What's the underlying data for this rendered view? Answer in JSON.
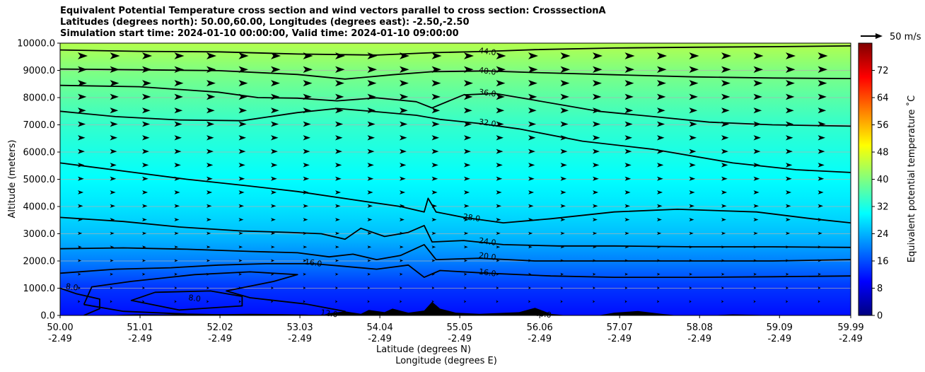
{
  "chart_data": {
    "type": "heatmap",
    "title_lines": [
      "Equivalent Potential Temperature cross section and wind vectors parallel to cross section: CrosssectionA",
      "Latitudes (degrees north): 50.00,60.00, Longitudes (degrees east): -2.50,-2.50",
      "Simulation start time: 2024-01-10 00:00:00, Valid time: 2024-01-10 09:00:00"
    ],
    "ylabel": "Altitude (meters)",
    "xlabel_lat": "Latitude (degrees N)",
    "xlabel_lon": "Longitude (degrees E)",
    "xlim": [
      50.0,
      59.99
    ],
    "ylim": [
      0,
      10000
    ],
    "x_ticks": [
      {
        "lat": "50.00",
        "lon": "-2.49"
      },
      {
        "lat": "51.01",
        "lon": "-2.49"
      },
      {
        "lat": "52.02",
        "lon": "-2.49"
      },
      {
        "lat": "53.03",
        "lon": "-2.49"
      },
      {
        "lat": "54.04",
        "lon": "-2.49"
      },
      {
        "lat": "55.05",
        "lon": "-2.49"
      },
      {
        "lat": "56.06",
        "lon": "-2.49"
      },
      {
        "lat": "57.07",
        "lon": "-2.49"
      },
      {
        "lat": "58.08",
        "lon": "-2.49"
      },
      {
        "lat": "59.09",
        "lon": "-2.49"
      },
      {
        "lat": "59.99",
        "lon": "-2.49"
      }
    ],
    "y_ticks": [
      "0.0",
      "1000.0",
      "2000.0",
      "3000.0",
      "4000.0",
      "5000.0",
      "6000.0",
      "7000.0",
      "8000.0",
      "9000.0",
      "10000.0"
    ],
    "grid": true,
    "colorbar": {
      "label": "Equivalent potential temperature ˚C",
      "range": [
        0,
        80
      ],
      "ticks": [
        "0",
        "8",
        "16",
        "24",
        "32",
        "40",
        "48",
        "56",
        "64",
        "72"
      ],
      "colormap": "jet"
    },
    "quiver_key": "50 m/s",
    "contour_labels": [
      {
        "text": "44.0",
        "lat": 55.4,
        "alt": 9700
      },
      {
        "text": "40.0",
        "lat": 55.4,
        "alt": 8980
      },
      {
        "text": "36.0",
        "lat": 55.4,
        "alt": 8180
      },
      {
        "text": "32.0",
        "lat": 55.4,
        "alt": 7080
      },
      {
        "text": "28.0",
        "lat": 55.2,
        "alt": 3600
      },
      {
        "text": "24.0",
        "lat": 55.4,
        "alt": 2720
      },
      {
        "text": "20.0",
        "lat": 55.4,
        "alt": 2180
      },
      {
        "text": "16.0",
        "lat": 55.4,
        "alt": 1580
      },
      {
        "text": "16.0",
        "lat": 53.2,
        "alt": 1940
      },
      {
        "text": "12.0",
        "lat": 53.4,
        "alt": 80
      },
      {
        "text": "16.0",
        "lat": 56.1,
        "alt": 60
      },
      {
        "text": "8.0",
        "lat": 51.7,
        "alt": 640
      },
      {
        "text": "8.0",
        "lat": 50.15,
        "alt": 1050
      }
    ],
    "contours": [
      {
        "level": 44,
        "points": [
          [
            50.0,
            9750
          ],
          [
            51.0,
            9700
          ],
          [
            52.0,
            9680
          ],
          [
            53.0,
            9600
          ],
          [
            54.0,
            9560
          ],
          [
            54.7,
            9650
          ],
          [
            55.4,
            9700
          ],
          [
            56.0,
            9760
          ],
          [
            57.0,
            9820
          ],
          [
            58.0,
            9850
          ],
          [
            59.0,
            9870
          ],
          [
            59.99,
            9900
          ]
        ]
      },
      {
        "level": 40,
        "points": [
          [
            50.0,
            9050
          ],
          [
            51.0,
            9020
          ],
          [
            52.0,
            8990
          ],
          [
            53.0,
            8850
          ],
          [
            53.6,
            8680
          ],
          [
            54.2,
            8840
          ],
          [
            54.7,
            8950
          ],
          [
            55.4,
            8980
          ],
          [
            56.0,
            8920
          ],
          [
            57.0,
            8840
          ],
          [
            58.0,
            8760
          ],
          [
            59.0,
            8720
          ],
          [
            59.99,
            8700
          ]
        ]
      },
      {
        "level": 36,
        "points": [
          [
            50.0,
            8450
          ],
          [
            51.0,
            8400
          ],
          [
            52.0,
            8200
          ],
          [
            52.5,
            8000
          ],
          [
            53.0,
            7980
          ],
          [
            53.5,
            7880
          ],
          [
            54.0,
            7990
          ],
          [
            54.5,
            7850
          ],
          [
            54.7,
            7620
          ],
          [
            55.1,
            8100
          ],
          [
            55.5,
            8150
          ],
          [
            56.0,
            7900
          ],
          [
            56.8,
            7500
          ],
          [
            57.5,
            7300
          ],
          [
            58.2,
            7100
          ],
          [
            59.0,
            7000
          ],
          [
            59.99,
            6950
          ]
        ]
      },
      {
        "level": 32,
        "points": [
          [
            50.0,
            7500
          ],
          [
            50.7,
            7300
          ],
          [
            51.5,
            7180
          ],
          [
            52.3,
            7150
          ],
          [
            53.0,
            7450
          ],
          [
            53.5,
            7600
          ],
          [
            54.0,
            7480
          ],
          [
            54.5,
            7350
          ],
          [
            54.8,
            7200
          ],
          [
            55.3,
            7050
          ],
          [
            55.8,
            6850
          ],
          [
            56.6,
            6400
          ],
          [
            57.5,
            6100
          ],
          [
            58.5,
            5600
          ],
          [
            59.3,
            5350
          ],
          [
            59.99,
            5250
          ]
        ]
      },
      {
        "level": 28,
        "points": [
          [
            50.0,
            5600
          ],
          [
            50.8,
            5300
          ],
          [
            51.6,
            5000
          ],
          [
            52.4,
            4750
          ],
          [
            53.0,
            4550
          ],
          [
            53.7,
            4250
          ],
          [
            54.3,
            4000
          ],
          [
            54.6,
            3800
          ],
          [
            54.65,
            4300
          ],
          [
            54.75,
            3800
          ],
          [
            55.1,
            3600
          ],
          [
            55.6,
            3400
          ],
          [
            56.2,
            3550
          ],
          [
            57.0,
            3800
          ],
          [
            57.8,
            3900
          ],
          [
            58.8,
            3800
          ],
          [
            59.5,
            3550
          ],
          [
            59.99,
            3400
          ]
        ]
      },
      {
        "level": 24,
        "points": [
          [
            50.0,
            3600
          ],
          [
            50.8,
            3450
          ],
          [
            51.5,
            3250
          ],
          [
            52.3,
            3100
          ],
          [
            52.9,
            3050
          ],
          [
            53.3,
            3000
          ],
          [
            53.6,
            2800
          ],
          [
            53.8,
            3200
          ],
          [
            54.1,
            2900
          ],
          [
            54.4,
            3050
          ],
          [
            54.6,
            3300
          ],
          [
            54.7,
            2700
          ],
          [
            55.1,
            2750
          ],
          [
            55.6,
            2600
          ],
          [
            56.3,
            2550
          ],
          [
            57.0,
            2550
          ],
          [
            58.0,
            2520
          ],
          [
            59.0,
            2520
          ],
          [
            59.99,
            2500
          ]
        ]
      },
      {
        "level": 20,
        "points": [
          [
            50.0,
            2450
          ],
          [
            50.8,
            2480
          ],
          [
            51.6,
            2430
          ],
          [
            52.4,
            2350
          ],
          [
            53.0,
            2300
          ],
          [
            53.4,
            2150
          ],
          [
            53.7,
            2250
          ],
          [
            54.0,
            2050
          ],
          [
            54.3,
            2200
          ],
          [
            54.6,
            2600
          ],
          [
            54.75,
            2050
          ],
          [
            55.3,
            2100
          ],
          [
            56.0,
            2000
          ],
          [
            57.0,
            2000
          ],
          [
            58.0,
            2000
          ],
          [
            59.0,
            2000
          ],
          [
            59.99,
            2050
          ]
        ]
      },
      {
        "level": 16,
        "points": [
          [
            50.0,
            1550
          ],
          [
            50.7,
            1700
          ],
          [
            51.4,
            1750
          ],
          [
            52.0,
            1850
          ],
          [
            52.6,
            1900
          ],
          [
            53.2,
            1900
          ],
          [
            53.6,
            1800
          ],
          [
            54.0,
            1700
          ],
          [
            54.4,
            1850
          ],
          [
            54.6,
            1400
          ],
          [
            54.8,
            1650
          ],
          [
            55.4,
            1550
          ],
          [
            56.2,
            1450
          ],
          [
            57.0,
            1400
          ],
          [
            58.0,
            1400
          ],
          [
            59.0,
            1420
          ],
          [
            59.99,
            1450
          ]
        ]
      },
      {
        "level": 12,
        "points": [
          [
            50.3,
            400
          ],
          [
            50.8,
            150
          ],
          [
            51.6,
            50
          ],
          [
            52.4,
            0
          ],
          [
            53.5,
            0
          ],
          [
            53.6,
            150
          ],
          [
            53.1,
            420
          ],
          [
            52.4,
            650
          ],
          [
            52.1,
            900
          ],
          [
            52.7,
            1250
          ],
          [
            53.0,
            1500
          ],
          [
            52.4,
            1600
          ],
          [
            51.7,
            1500
          ],
          [
            50.9,
            1250
          ],
          [
            50.4,
            1050
          ],
          [
            50.3,
            400
          ]
        ]
      },
      {
        "level": 8,
        "points": [
          [
            51.5,
            200
          ],
          [
            52.3,
            350
          ],
          [
            52.3,
            700
          ],
          [
            51.9,
            900
          ],
          [
            51.2,
            850
          ],
          [
            50.9,
            550
          ],
          [
            51.5,
            200
          ]
        ]
      },
      {
        "level": 8,
        "points": [
          [
            50.0,
            1000
          ],
          [
            50.2,
            800
          ],
          [
            50.5,
            600
          ],
          [
            50.5,
            250
          ],
          [
            50.3,
            0
          ]
        ]
      }
    ]
  }
}
